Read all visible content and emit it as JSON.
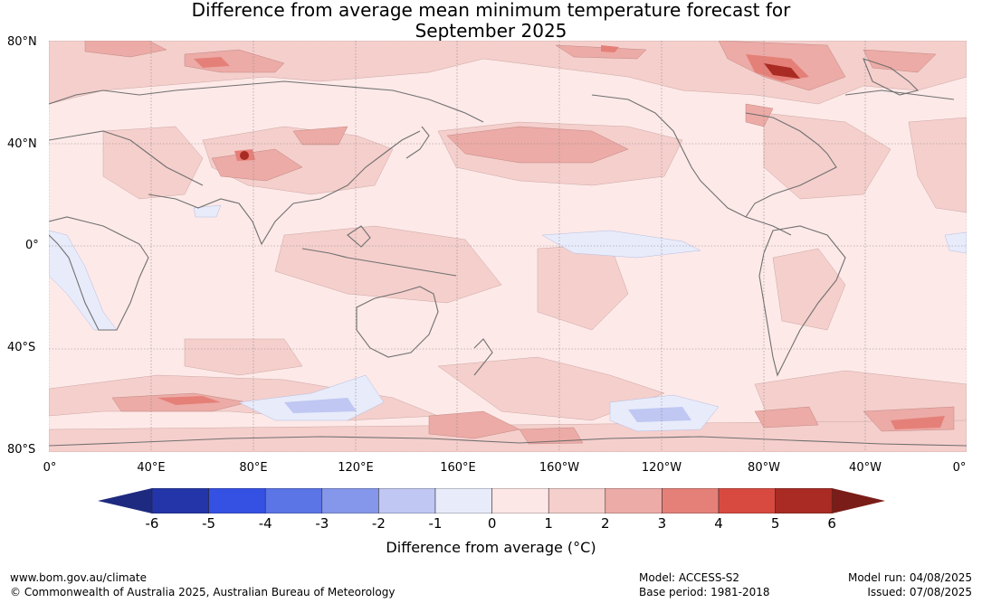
{
  "title_line1": "Difference from average mean minimum temperature forecast for",
  "title_line2": "September 2025",
  "lat_labels": [
    "80°N",
    "40°N",
    "0°",
    "40°S",
    "80°S"
  ],
  "lon_labels": [
    "0°",
    "40°E",
    "80°E",
    "120°E",
    "160°E",
    "160°W",
    "120°W",
    "80°W",
    "40°W",
    "0°"
  ],
  "colorbar": {
    "ticks": [
      "-6",
      "-5",
      "-4",
      "-3",
      "-2",
      "-1",
      "0",
      "1",
      "2",
      "3",
      "4",
      "5",
      "6"
    ],
    "colors": [
      "#2335a8",
      "#3451e3",
      "#5b74e6",
      "#8597ea",
      "#bfc7f2",
      "#e8ebfa",
      "#fde7e6",
      "#f5cfcc",
      "#ecaba6",
      "#e58079",
      "#d84a3f",
      "#a92b23"
    ],
    "low_color": "#1d2a7f",
    "high_color": "#7a1d18",
    "label": "Difference from average (°C)"
  },
  "footer": {
    "url": "www.bom.gov.au/climate",
    "copyright": "© Commonwealth of Australia 2025, Australian Bureau of Meteorology",
    "model": "Model: ACCESS-S2",
    "base_period": "Base period: 1981-2018",
    "model_run": "Model run: 04/08/2025",
    "issued": "Issued: 07/08/2025"
  },
  "map_colors": {
    "ocean_base": "#fde9e8",
    "land_outline": "#707070",
    "grid": "#888888"
  }
}
